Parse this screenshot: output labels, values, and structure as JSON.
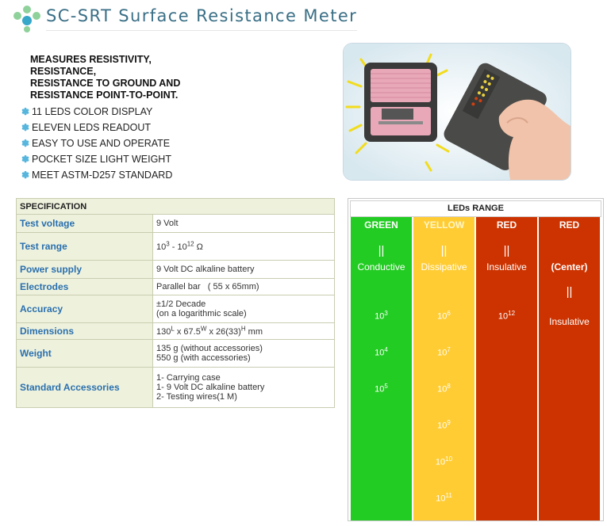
{
  "header": {
    "title": "SC-SRT  Surface Resistance Meter"
  },
  "intro_lines": [
    "MEASURES RESISTIVITY,",
    "RESISTANCE,",
    "RESISTANCE TO GROUND AND",
    "RESISTANCE POINT-TO-POINT."
  ],
  "features": [
    "11 LEDS COLOR DISPLAY",
    "ELEVEN LEDS READOUT",
    "EASY TO USE AND OPERATE",
    "POCKET SIZE LIGHT WEIGHT",
    "MEET ASTM-D257 STANDARD"
  ],
  "spec": {
    "heading": "SPECIFICATION",
    "rows": [
      {
        "label": "Test voltage",
        "lines": [
          "9 Volt"
        ]
      },
      {
        "label": "Test range",
        "lines": [
          "10^3 - 10^12 Ω"
        ]
      },
      {
        "label": "Power supply",
        "lines": [
          "9 Volt DC alkaline battery"
        ]
      },
      {
        "label": "Electrodes",
        "lines": [
          "Parallel bar   ( 55 x 65mm)"
        ]
      },
      {
        "label": "Accuracy",
        "lines": [
          "±1/2 Decade",
          "(on a logarithmic scale)"
        ]
      },
      {
        "label": "Dimensions",
        "lines": [
          "130^L x 67.5^W x 26(33)^H mm"
        ]
      },
      {
        "label": "Weight",
        "lines": [
          "135 g (without accessories)",
          "550 g (with accessories)"
        ]
      },
      {
        "label": "Standard Accessories",
        "lines": [
          "1- Carrying case",
          "1- 9 Volt DC alkaline battery",
          "2- Testing wires(1 M)"
        ]
      }
    ]
  },
  "leds": {
    "title": "LEDs RANGE",
    "columns": [
      {
        "name": "GREEN",
        "color": "#22cc22",
        "name_color": "#ffffff",
        "pipe": "||",
        "label": "Conductive",
        "values": [
          "10^3",
          "10^4",
          "10^5"
        ]
      },
      {
        "name": "YELLOW",
        "color": "#ffcc33",
        "name_color": "#fff6cc",
        "pipe": "||",
        "label": "Dissipative",
        "values": [
          "10^6",
          "10^7",
          "10^8",
          "10^9",
          "10^10",
          "10^11"
        ]
      },
      {
        "name": "RED",
        "color": "#cc3300",
        "name_color": "#ffffff",
        "pipe": "||",
        "label": "Insulative",
        "values": [
          "10^12"
        ]
      },
      {
        "name": "RED",
        "color": "#cc3300",
        "name_color": "#ffffff",
        "pipe": "||",
        "label": "(Center)",
        "sub": "Insulative",
        "values": []
      }
    ]
  },
  "colors": {
    "title": "#3a6f86",
    "spec_label": "#2a6fae",
    "spec_bg": "#eef2dd",
    "bullet": "#55b5dd"
  }
}
